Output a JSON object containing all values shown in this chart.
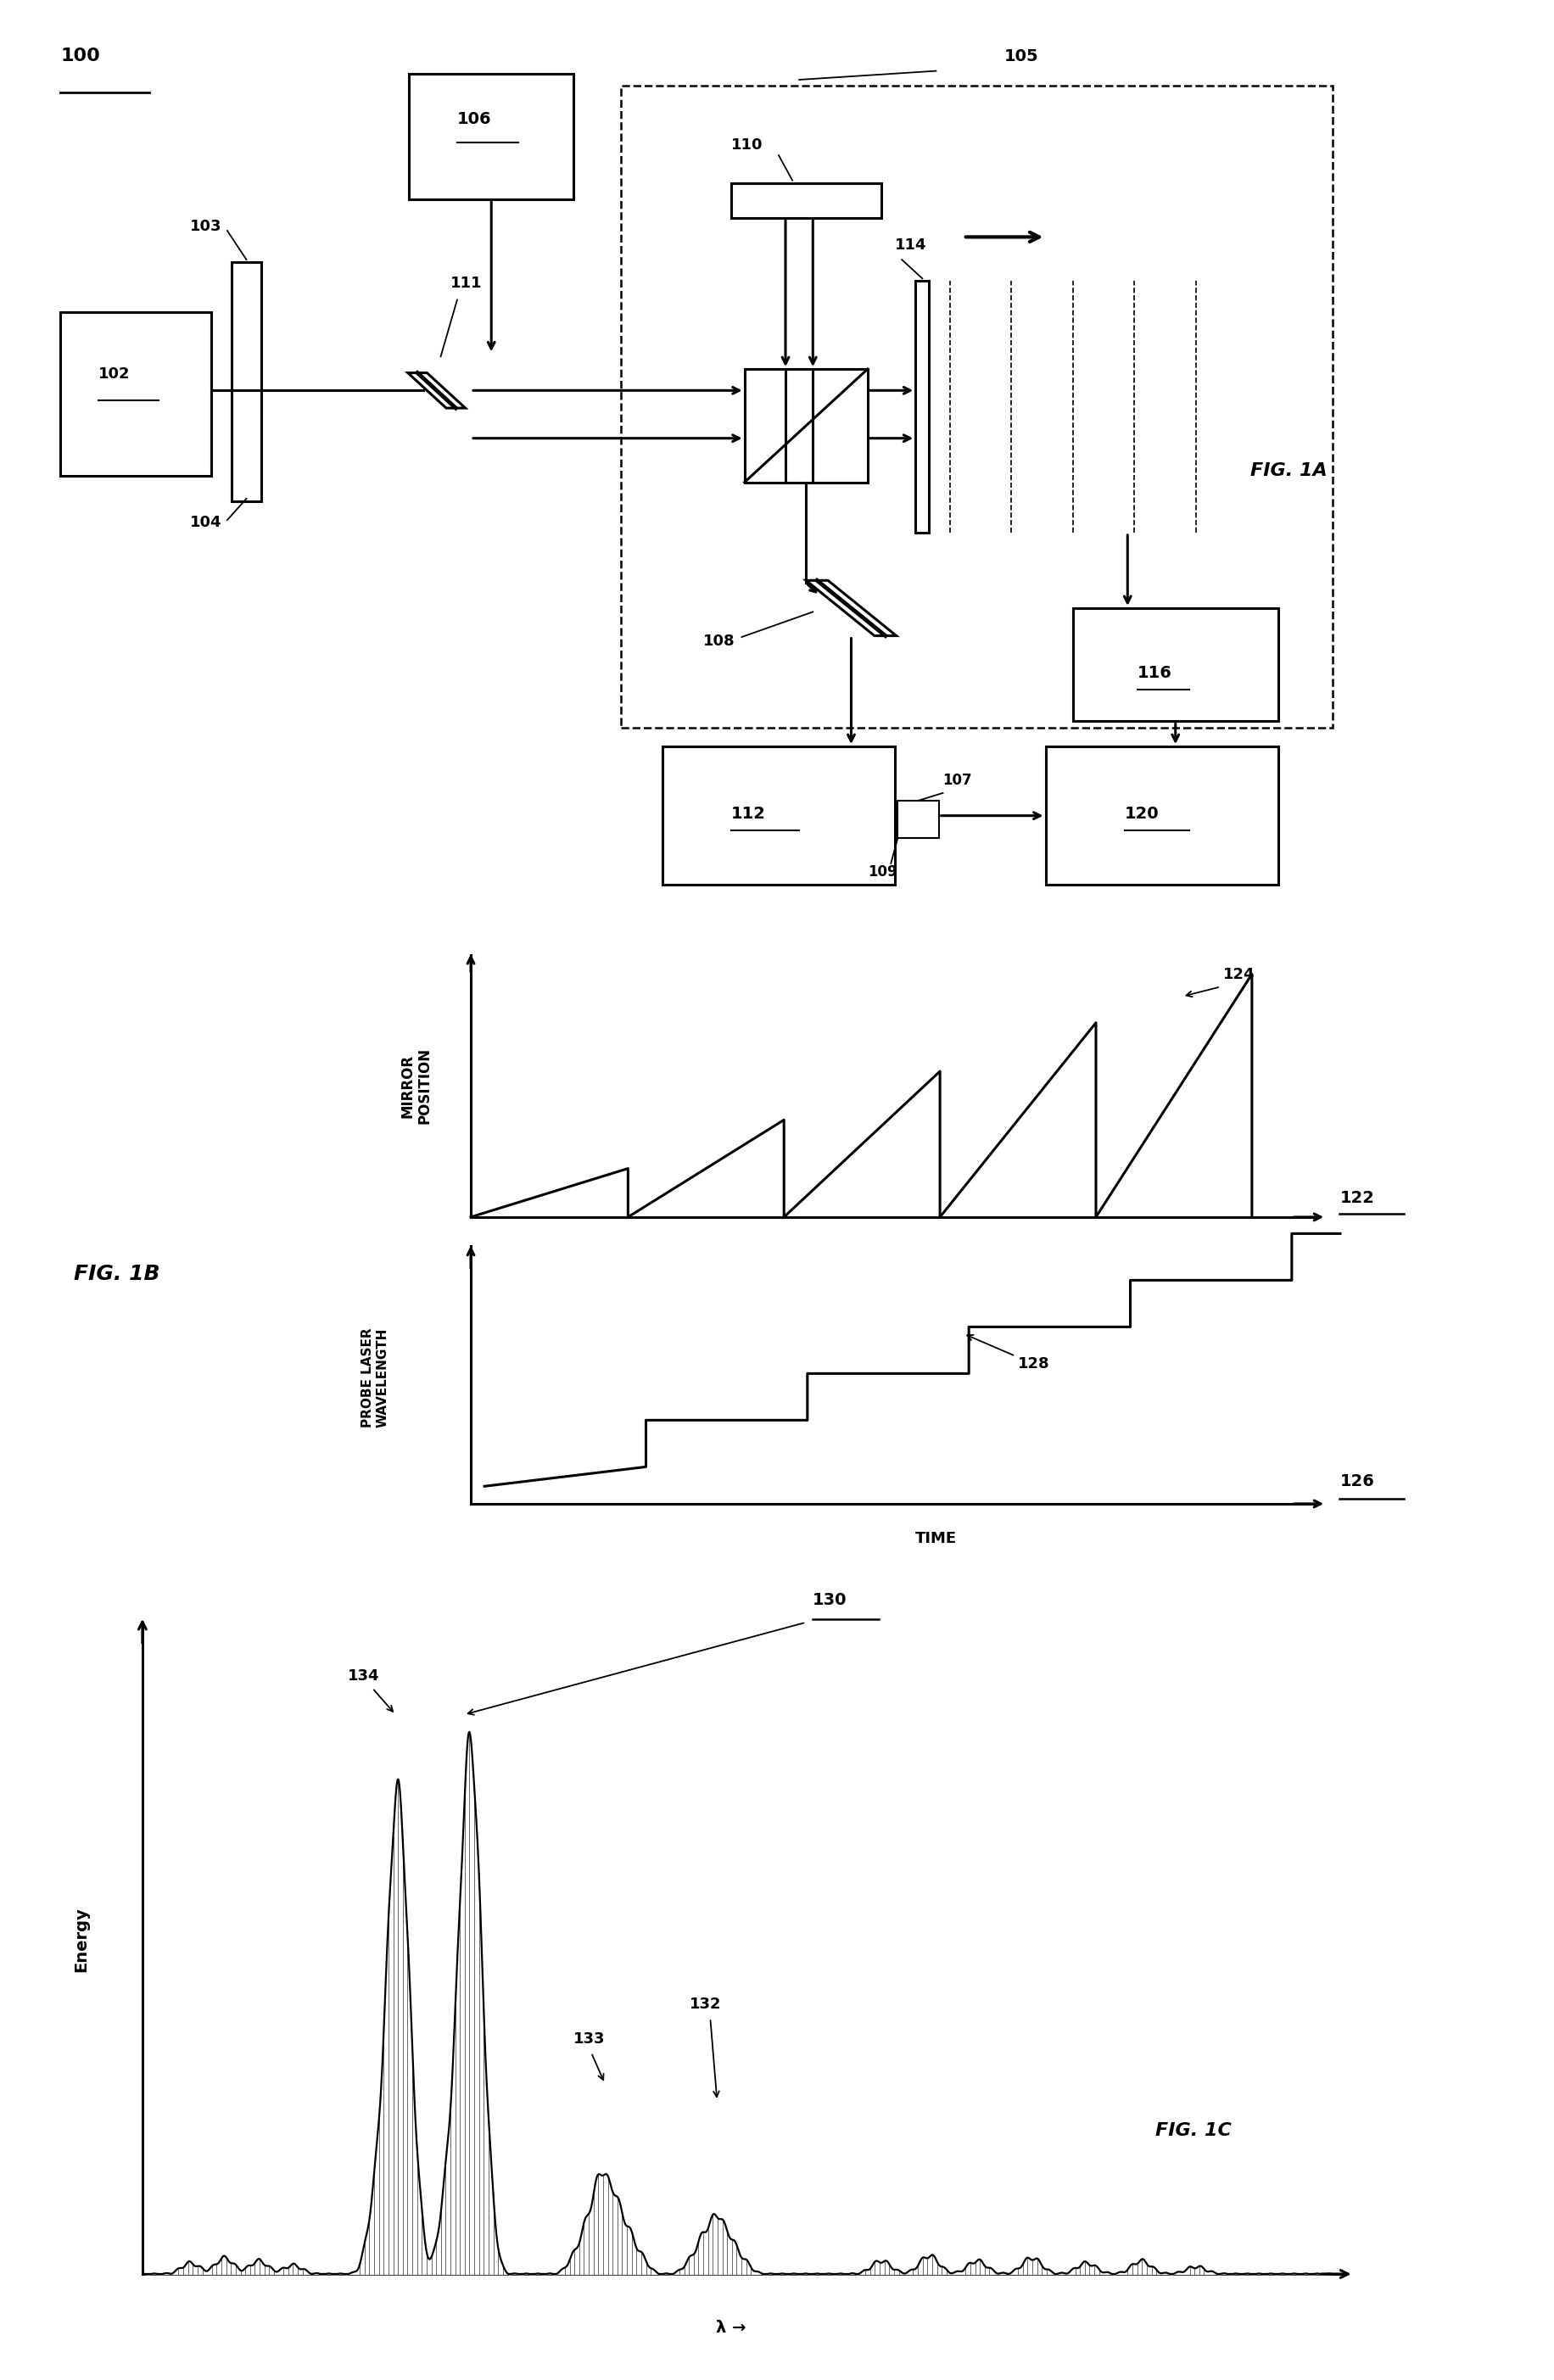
{
  "fig_width": 18.33,
  "fig_height": 28.06,
  "bg_color": "#ffffff",
  "fig1a": {
    "title": "FIG. 1A",
    "label_100": "100",
    "label_102": "102",
    "label_103": "103",
    "label_104": "104",
    "label_105": "105",
    "label_106": "106",
    "label_107": "107",
    "label_108": "108",
    "label_109": "109",
    "label_110": "110",
    "label_111": "111",
    "label_112": "112",
    "label_114": "114",
    "label_116": "116",
    "label_120": "120"
  },
  "fig1b": {
    "title": "FIG. 1B",
    "label_122": "122",
    "label_124": "124",
    "label_126": "126",
    "label_128": "128",
    "ylabel_top": "MIRROR\nPOSITION",
    "ylabel_bot": "PROBE LASER\nWAVELENGTH",
    "xlabel": "TIME"
  },
  "fig1c": {
    "title": "FIG. 1C",
    "label_130": "130",
    "label_132": "132",
    "label_133": "133",
    "label_134": "134",
    "ylabel": "Energy",
    "xlabel": "λ →"
  }
}
